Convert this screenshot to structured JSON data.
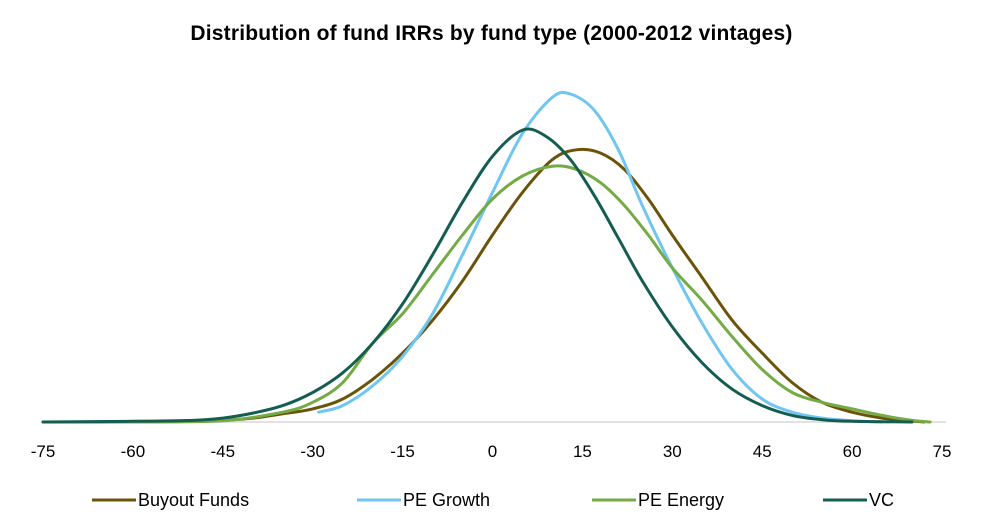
{
  "chart_data": {
    "type": "line",
    "title": "Distribution of fund IRRs by fund type (2000-2012 vintages)",
    "xlabel": "",
    "ylabel": "",
    "x_ticks": [
      -75,
      -60,
      -45,
      -30,
      -15,
      0,
      15,
      30,
      45,
      60,
      75
    ],
    "xlim": [
      -75,
      75
    ],
    "ylim": [
      0,
      1
    ],
    "grid": false,
    "legend_position": "bottom",
    "series": [
      {
        "name": "Buyout Funds",
        "color": "#6b5309",
        "points": [
          [
            -75,
            0.0
          ],
          [
            -60,
            0.0
          ],
          [
            -50,
            0.002
          ],
          [
            -45,
            0.005
          ],
          [
            -40,
            0.012
          ],
          [
            -35,
            0.025
          ],
          [
            -30,
            0.04
          ],
          [
            -25,
            0.07
          ],
          [
            -20,
            0.13
          ],
          [
            -15,
            0.21
          ],
          [
            -10,
            0.31
          ],
          [
            -5,
            0.43
          ],
          [
            0,
            0.57
          ],
          [
            5,
            0.7
          ],
          [
            10,
            0.8
          ],
          [
            14,
            0.83
          ],
          [
            18,
            0.82
          ],
          [
            22,
            0.77
          ],
          [
            26,
            0.68
          ],
          [
            30,
            0.57
          ],
          [
            35,
            0.44
          ],
          [
            40,
            0.31
          ],
          [
            45,
            0.21
          ],
          [
            50,
            0.12
          ],
          [
            55,
            0.06
          ],
          [
            60,
            0.03
          ],
          [
            65,
            0.012
          ],
          [
            70,
            0.003
          ],
          [
            72,
            0.0
          ]
        ]
      },
      {
        "name": "PE Growth",
        "color": "#6fc6f0",
        "points": [
          [
            -29,
            0.03
          ],
          [
            -25,
            0.05
          ],
          [
            -20,
            0.11
          ],
          [
            -15,
            0.2
          ],
          [
            -10,
            0.33
          ],
          [
            -5,
            0.51
          ],
          [
            0,
            0.7
          ],
          [
            5,
            0.88
          ],
          [
            10,
            0.99
          ],
          [
            13,
            1.0
          ],
          [
            17,
            0.95
          ],
          [
            21,
            0.83
          ],
          [
            25,
            0.66
          ],
          [
            30,
            0.47
          ],
          [
            35,
            0.3
          ],
          [
            40,
            0.16
          ],
          [
            45,
            0.07
          ],
          [
            50,
            0.03
          ],
          [
            55,
            0.012
          ],
          [
            60,
            0.004
          ],
          [
            65,
            0.0
          ]
        ]
      },
      {
        "name": "PE Energy",
        "color": "#74ab45",
        "points": [
          [
            -75,
            0.0
          ],
          [
            -60,
            0.0
          ],
          [
            -45,
            0.004
          ],
          [
            -35,
            0.03
          ],
          [
            -30,
            0.06
          ],
          [
            -25,
            0.12
          ],
          [
            -20,
            0.24
          ],
          [
            -15,
            0.33
          ],
          [
            -10,
            0.45
          ],
          [
            -5,
            0.57
          ],
          [
            0,
            0.68
          ],
          [
            5,
            0.75
          ],
          [
            10,
            0.78
          ],
          [
            14,
            0.77
          ],
          [
            18,
            0.73
          ],
          [
            22,
            0.66
          ],
          [
            26,
            0.57
          ],
          [
            30,
            0.47
          ],
          [
            35,
            0.37
          ],
          [
            40,
            0.26
          ],
          [
            45,
            0.16
          ],
          [
            50,
            0.09
          ],
          [
            55,
            0.06
          ],
          [
            60,
            0.04
          ],
          [
            65,
            0.02
          ],
          [
            70,
            0.005
          ],
          [
            73,
            0.0
          ]
        ]
      },
      {
        "name": "VC",
        "color": "#155d51",
        "points": [
          [
            -75,
            0.0
          ],
          [
            -60,
            0.002
          ],
          [
            -50,
            0.005
          ],
          [
            -45,
            0.012
          ],
          [
            -40,
            0.027
          ],
          [
            -35,
            0.05
          ],
          [
            -30,
            0.09
          ],
          [
            -25,
            0.15
          ],
          [
            -20,
            0.24
          ],
          [
            -15,
            0.36
          ],
          [
            -10,
            0.51
          ],
          [
            -5,
            0.67
          ],
          [
            0,
            0.81
          ],
          [
            5,
            0.89
          ],
          [
            9,
            0.87
          ],
          [
            13,
            0.8
          ],
          [
            17,
            0.69
          ],
          [
            21,
            0.56
          ],
          [
            25,
            0.43
          ],
          [
            30,
            0.29
          ],
          [
            35,
            0.18
          ],
          [
            40,
            0.1
          ],
          [
            45,
            0.05
          ],
          [
            50,
            0.02
          ],
          [
            55,
            0.007
          ],
          [
            60,
            0.002
          ],
          [
            70,
            0.0
          ]
        ]
      }
    ]
  }
}
